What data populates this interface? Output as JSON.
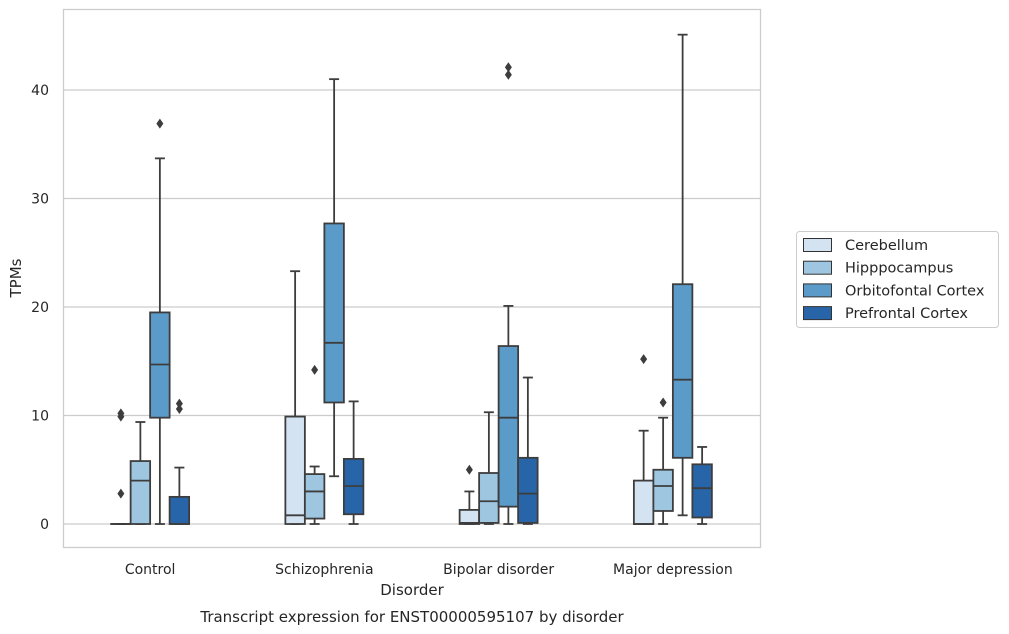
{
  "chart_data": {
    "type": "box",
    "title": "Transcript expression for ENST00000595107 by disorder",
    "xlabel": "Disorder",
    "ylabel": "TPMs",
    "ylim": [
      -2.2,
      47.5
    ],
    "yticks": [
      0,
      10,
      20,
      30,
      40
    ],
    "grid": "horizontal",
    "legend_position": "right",
    "categories": [
      "Control",
      "Schizophrenia",
      "Bipolar disorder",
      "Major depression"
    ],
    "series": [
      {
        "name": "Cerebellum",
        "color": "#d4e3f1",
        "boxes": [
          {
            "min": 0,
            "q1": 0,
            "median": 0,
            "q3": 0,
            "max": 0,
            "outliers": [
              2.8,
              9.9,
              10.2
            ]
          },
          {
            "min": 0,
            "q1": 0,
            "median": 0.8,
            "q3": 9.9,
            "max": 23.3,
            "outliers": []
          },
          {
            "min": 0,
            "q1": 0,
            "median": 0.1,
            "q3": 1.3,
            "max": 3.0,
            "outliers": [
              5.0
            ]
          },
          {
            "min": 0,
            "q1": 0,
            "median": 0,
            "q3": 4.0,
            "max": 8.6,
            "outliers": [
              15.2
            ]
          }
        ]
      },
      {
        "name": "Hipppocampus",
        "color": "#9fc6e0",
        "boxes": [
          {
            "min": 0,
            "q1": 0,
            "median": 4.0,
            "q3": 5.8,
            "max": 9.4,
            "outliers": []
          },
          {
            "min": 0,
            "q1": 0.5,
            "median": 3.0,
            "q3": 4.6,
            "max": 5.3,
            "outliers": [
              14.2
            ]
          },
          {
            "min": 0,
            "q1": 0.1,
            "median": 2.1,
            "q3": 4.7,
            "max": 10.3,
            "outliers": []
          },
          {
            "min": 0,
            "q1": 1.2,
            "median": 3.5,
            "q3": 5.0,
            "max": 9.8,
            "outliers": [
              11.2
            ]
          }
        ]
      },
      {
        "name": "Orbitofontal Cortex",
        "color": "#5a9bc9",
        "boxes": [
          {
            "min": 0,
            "q1": 9.8,
            "median": 14.7,
            "q3": 19.5,
            "max": 33.7,
            "outliers": [
              36.9
            ]
          },
          {
            "min": 4.4,
            "q1": 11.2,
            "median": 16.7,
            "q3": 27.7,
            "max": 41.0,
            "outliers": []
          },
          {
            "min": 0,
            "q1": 1.6,
            "median": 9.8,
            "q3": 16.4,
            "max": 20.1,
            "outliers": [
              41.4,
              42.1
            ]
          },
          {
            "min": 0.8,
            "q1": 6.1,
            "median": 13.3,
            "q3": 22.1,
            "max": 45.1,
            "outliers": []
          }
        ]
      },
      {
        "name": "Prefrontal Cortex",
        "color": "#2865a8",
        "boxes": [
          {
            "min": 0,
            "q1": 0,
            "median": 0,
            "q3": 2.5,
            "max": 5.2,
            "outliers": [
              10.6,
              11.1
            ]
          },
          {
            "min": 0,
            "q1": 0.9,
            "median": 3.5,
            "q3": 6.0,
            "max": 11.3,
            "outliers": []
          },
          {
            "min": 0,
            "q1": 0.1,
            "median": 2.8,
            "q3": 6.1,
            "max": 13.5,
            "outliers": []
          },
          {
            "min": 0,
            "q1": 0.6,
            "median": 3.3,
            "q3": 5.5,
            "max": 7.1,
            "outliers": []
          }
        ]
      }
    ]
  }
}
